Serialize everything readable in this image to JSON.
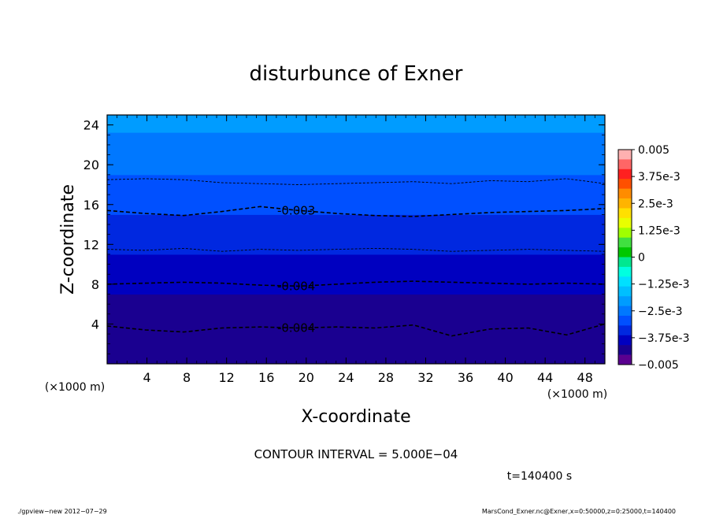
{
  "chart_data": {
    "type": "contour",
    "title": "disturbunce of Exner",
    "xlabel": "X-coordinate",
    "ylabel": "Z-coordinate",
    "x_unit": "(×1000 m)",
    "y_unit": "(×1000 m)",
    "xlim": [
      0,
      50
    ],
    "ylim": [
      0,
      25
    ],
    "x_ticks": [
      "4",
      "8",
      "12",
      "16",
      "20",
      "24",
      "28",
      "32",
      "36",
      "40",
      "44",
      "48"
    ],
    "y_ticks": [
      "4",
      "8",
      "12",
      "16",
      "20",
      "24"
    ],
    "z_profile": [
      {
        "z": 0.5,
        "value": -0.0041
      },
      {
        "z": 2,
        "value": -0.0042
      },
      {
        "z": 4,
        "value": -0.0041
      },
      {
        "z": 6,
        "value": -0.0043
      },
      {
        "z": 8,
        "value": -0.004
      },
      {
        "z": 10,
        "value": -0.0037
      },
      {
        "z": 12,
        "value": -0.0035
      },
      {
        "z": 14,
        "value": -0.0032
      },
      {
        "z": 16,
        "value": -0.003
      },
      {
        "z": 18,
        "value": -0.00275
      },
      {
        "z": 20,
        "value": -0.0025
      },
      {
        "z": 22,
        "value": -0.0023
      },
      {
        "z": 24.5,
        "value": -0.0021
      }
    ],
    "contour_lines": [
      {
        "value": -0.0025,
        "label": "",
        "z_points": [
          18.5,
          18.6,
          18.5,
          18.2,
          18.1,
          18.0,
          18.1,
          18.2,
          18.3,
          18.1,
          18.4,
          18.3,
          18.6,
          18.1
        ]
      },
      {
        "value": -0.003,
        "label": "-0.003",
        "z_points": [
          15.4,
          15.1,
          14.9,
          15.3,
          15.8,
          15.4,
          15.1,
          14.9,
          14.8,
          15.0,
          15.2,
          15.3,
          15.4,
          15.6
        ]
      },
      {
        "value": -0.0035,
        "label": "",
        "z_points": [
          11.5,
          11.4,
          11.6,
          11.3,
          11.5,
          11.4,
          11.5,
          11.6,
          11.5,
          11.3,
          11.4,
          11.5,
          11.4,
          11.3
        ]
      },
      {
        "value": -0.004,
        "label": "-0.004",
        "z_points": [
          8.0,
          8.1,
          8.2,
          8.1,
          7.9,
          7.8,
          8.0,
          8.2,
          8.3,
          8.2,
          8.1,
          8.0,
          8.1,
          8.0
        ]
      },
      {
        "value": -0.004,
        "label": "-0.004",
        "z_points": [
          3.8,
          3.4,
          3.2,
          3.6,
          3.7,
          3.6,
          3.7,
          3.6,
          3.9,
          2.8,
          3.5,
          3.6,
          2.9,
          4.0
        ]
      }
    ],
    "colorbar": {
      "labels": [
        "0.005",
        "3.75e-3",
        "2.5e-3",
        "1.25e-3",
        "0",
        "−1.25e-3",
        "−2.5e-3",
        "−3.75e-3",
        "−0.005"
      ],
      "colors": [
        "#ffb0b0",
        "#ff6666",
        "#ff2020",
        "#ff5000",
        "#ff8c00",
        "#ffb400",
        "#ffe000",
        "#e8ff00",
        "#a0ff00",
        "#40e040",
        "#00c800",
        "#00e890",
        "#00ffe0",
        "#00e0ff",
        "#00bfff",
        "#009cff",
        "#0078ff",
        "#0050ff",
        "#0028e0",
        "#0000c0",
        "#1a0090",
        "#5a0090"
      ]
    }
  },
  "annotations": {
    "contour_interval": "CONTOUR INTERVAL = 5.000E−04",
    "time": "t=140400 s",
    "footer_left": "./gpview−new  2012−07−29",
    "footer_right": "MarsCond_Exner.nc@Exner,x=0:50000,z=0:25000,t=140400"
  }
}
